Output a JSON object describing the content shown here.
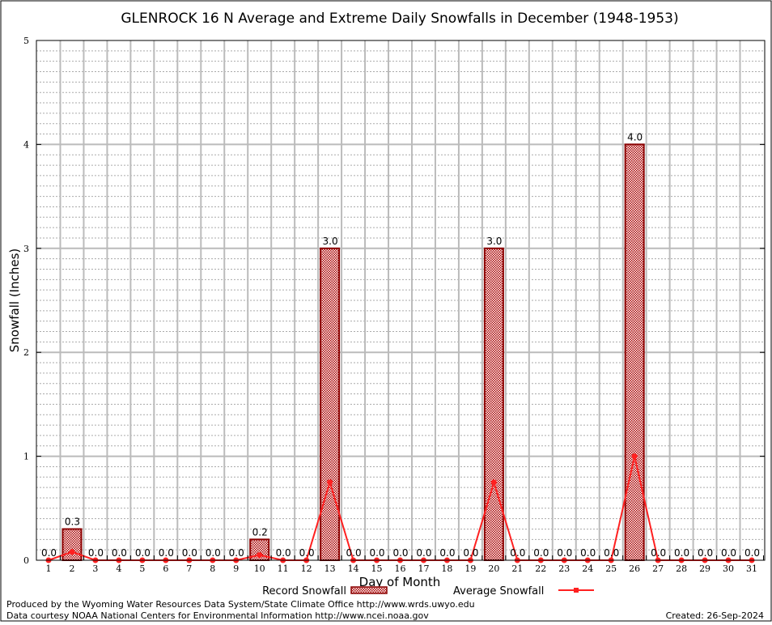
{
  "chart_data": {
    "type": "bar",
    "title": "GLENROCK 16 N Average and Extreme Daily Snowfalls in December (1948-1953)",
    "xlabel": "Day of Month",
    "ylabel": "Snowfall (Inches)",
    "ylim": [
      0,
      5
    ],
    "yticks": [
      "0",
      "1",
      "2",
      "3",
      "4",
      "5"
    ],
    "categories": [
      "1",
      "2",
      "3",
      "4",
      "5",
      "6",
      "7",
      "8",
      "9",
      "10",
      "11",
      "12",
      "13",
      "14",
      "15",
      "16",
      "17",
      "18",
      "19",
      "20",
      "21",
      "22",
      "23",
      "24",
      "25",
      "26",
      "27",
      "28",
      "29",
      "30",
      "31"
    ],
    "series": [
      {
        "name": "Record Snowfall",
        "type": "bar",
        "color": "#8b0000",
        "values": [
          0,
          0.3,
          0,
          0,
          0,
          0,
          0,
          0,
          0,
          0.2,
          0,
          0,
          3.0,
          0,
          0,
          0,
          0,
          0,
          0,
          3.0,
          0,
          0,
          0,
          0,
          0,
          4.0,
          0,
          0,
          0,
          0,
          0
        ],
        "labels": [
          "0.0",
          "0.3",
          "0.0",
          "0.0",
          "0.0",
          "0.0",
          "0.0",
          "0.0",
          "0.0",
          "0.2",
          "0.0",
          "0.0",
          "3.0",
          "0.0",
          "0.0",
          "0.0",
          "0.0",
          "0.0",
          "0.0",
          "3.0",
          "0.0",
          "0.0",
          "0.0",
          "0.0",
          "0.0",
          "4.0",
          "0.0",
          "0.0",
          "0.0",
          "0.0",
          "0.0"
        ]
      },
      {
        "name": "Average Snowfall",
        "type": "line",
        "color": "#ff2020",
        "values": [
          0,
          0.08,
          0,
          0,
          0,
          0,
          0,
          0,
          0,
          0.05,
          0,
          0,
          0.75,
          0,
          0,
          0,
          0,
          0,
          0,
          0.75,
          0,
          0,
          0,
          0,
          0,
          1.0,
          0,
          0,
          0,
          0,
          0
        ]
      }
    ],
    "grid": true,
    "legend": "bottom-center"
  },
  "footer": {
    "produced": "Produced by the Wyoming Water Resources Data System/State Climate Office http://www.wrds.uwyo.edu",
    "courtesy": "Data courtesy NOAA National Centers for Environmental Information http://www.ncei.noaa.gov",
    "created": "Created:  26-Sep-2024"
  }
}
